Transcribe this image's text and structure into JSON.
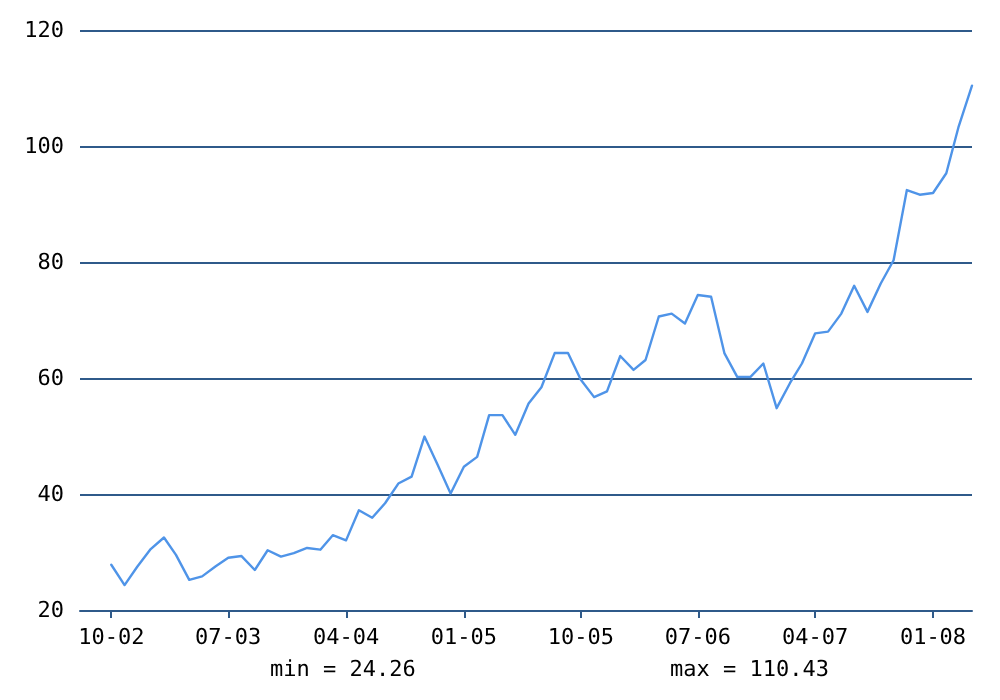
{
  "chart_data": {
    "type": "line",
    "x": [
      "2002-10",
      "2002-11",
      "2002-12",
      "2003-01",
      "2003-02",
      "2003-03",
      "2003-04",
      "2003-05",
      "2003-06",
      "2003-07",
      "2003-08",
      "2003-09",
      "2003-10",
      "2003-11",
      "2003-12",
      "2004-01",
      "2004-02",
      "2004-03",
      "2004-04",
      "2004-05",
      "2004-06",
      "2004-07",
      "2004-08",
      "2004-09",
      "2004-10",
      "2004-11",
      "2004-12",
      "2005-01",
      "2005-02",
      "2005-03",
      "2005-04",
      "2005-05",
      "2005-06",
      "2005-07",
      "2005-08",
      "2005-09",
      "2005-10",
      "2005-11",
      "2005-12",
      "2006-01",
      "2006-02",
      "2006-03",
      "2006-04",
      "2006-05",
      "2006-06",
      "2006-07",
      "2006-08",
      "2006-09",
      "2006-10",
      "2006-11",
      "2006-12",
      "2007-01",
      "2007-02",
      "2007-03",
      "2007-04",
      "2007-05",
      "2007-06",
      "2007-07",
      "2007-08",
      "2007-09",
      "2007-10",
      "2007-11",
      "2007-12",
      "2008-01",
      "2008-02",
      "2008-03",
      "2008-04"
    ],
    "series": [
      {
        "color": "#4f94e8",
        "values": [
          27.8,
          24.3,
          27.5,
          30.5,
          32.5,
          29.5,
          25.2,
          25.8,
          27.5,
          29.0,
          29.3,
          26.9,
          30.3,
          29.2,
          29.8,
          30.7,
          30.4,
          32.9,
          32.0,
          37.2,
          35.9,
          38.4,
          41.8,
          43.0,
          49.9,
          45.0,
          40.1,
          44.7,
          46.4,
          53.6,
          53.6,
          50.2,
          55.6,
          58.4,
          64.3,
          64.3,
          59.7,
          56.7,
          57.7,
          63.8,
          61.4,
          63.1,
          70.6,
          71.1,
          69.4,
          74.3,
          74.0,
          64.3,
          60.2,
          60.2,
          62.5,
          54.8,
          59.1,
          62.5,
          67.7,
          68.0,
          71.1,
          75.9,
          71.4,
          76.3,
          80.3,
          92.4,
          91.6,
          91.9,
          95.3,
          103.4,
          110.4
        ]
      }
    ],
    "xlim": [
      "2002-07-20",
      "2008-04"
    ],
    "xticks": [
      {
        "value": "2002-10",
        "label": "10-02"
      },
      {
        "value": "2003-07",
        "label": "07-03"
      },
      {
        "value": "2004-04",
        "label": "04-04"
      },
      {
        "value": "2005-01",
        "label": "01-05"
      },
      {
        "value": "2005-10",
        "label": "10-05"
      },
      {
        "value": "2006-07",
        "label": "07-06"
      },
      {
        "value": "2007-04",
        "label": "04-07"
      },
      {
        "value": "2008-01",
        "label": "01-08"
      }
    ],
    "ylim": [
      20,
      120
    ],
    "yticks": [
      20,
      40,
      60,
      80,
      100,
      120
    ],
    "grid": "y",
    "marker": "none",
    "line_style": "solid",
    "annotations": [
      "min = 24.26",
      "max = 110.43"
    ]
  }
}
